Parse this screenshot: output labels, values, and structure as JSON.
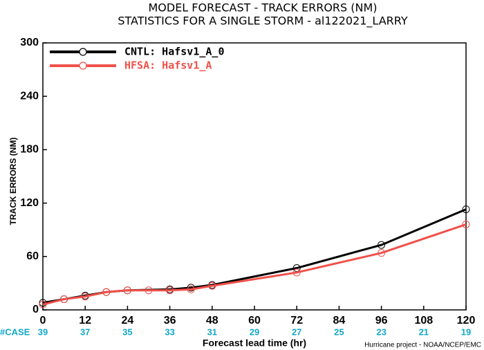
{
  "chart_data": {
    "type": "line",
    "title": "MODEL FORECAST - TRACK ERRORS (NM)",
    "subtitle": "STATISTICS FOR A SINGLE STORM - al122021_LARRY",
    "xlabel": "Forecast lead time (hr)",
    "ylabel": "TRACK ERRORS (NM)",
    "footer": "Hurricane project - NOAA/NCEP/EMC",
    "xlim": [
      0,
      120
    ],
    "xticks": [
      0,
      12,
      24,
      36,
      48,
      60,
      72,
      84,
      96,
      108,
      120
    ],
    "ylim": [
      0,
      300
    ],
    "yticks": [
      0,
      60,
      120,
      180,
      240,
      300
    ],
    "legend": "upper left",
    "series": [
      {
        "name": "CNTL: Hafsv1_A_0",
        "color": "#000000",
        "x": [
          0,
          6,
          12,
          18,
          24,
          36,
          42,
          48,
          72,
          96,
          120
        ],
        "values": [
          8,
          12,
          16,
          20,
          22,
          23,
          25,
          28,
          47,
          73,
          113
        ]
      },
      {
        "name": "HFSA: Hafsv1_A",
        "color": "#f0504a",
        "x": [
          0,
          6,
          12,
          18,
          24,
          30,
          36,
          42,
          48,
          72,
          96,
          120
        ],
        "values": [
          6,
          12,
          15,
          20,
          22,
          22,
          22,
          23,
          27,
          42,
          64,
          96
        ]
      }
    ],
    "cases": {
      "label": "#CASE",
      "values": [
        39,
        37,
        35,
        33,
        31,
        29,
        27,
        25,
        23,
        21,
        19
      ]
    }
  }
}
